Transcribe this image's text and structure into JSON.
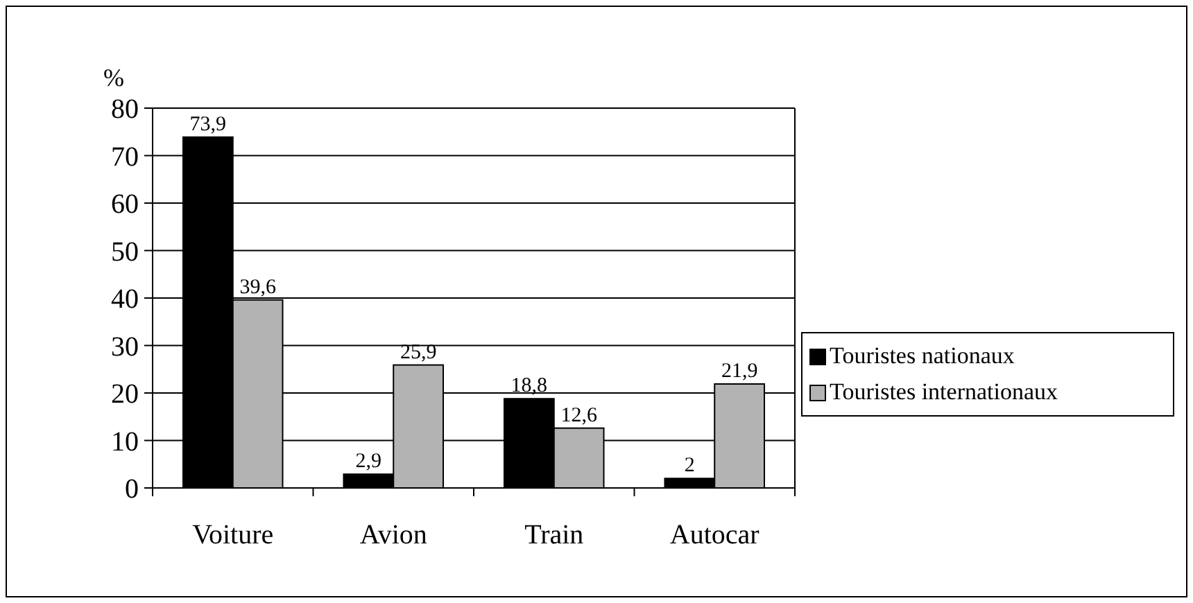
{
  "chart_data": {
    "type": "bar",
    "ylabel": "%",
    "categories": [
      "Voiture",
      "Avion",
      "Train",
      "Autocar"
    ],
    "series": [
      {
        "name": "Touristes nationaux",
        "color": "#000000",
        "values": [
          73.9,
          2.9,
          18.8,
          2
        ],
        "value_labels": [
          "73,9",
          "2,9",
          "18,8",
          "2"
        ]
      },
      {
        "name": "Touristes internationaux",
        "color": "#b3b3b3",
        "values": [
          39.6,
          25.9,
          12.6,
          21.9
        ],
        "value_labels": [
          "39,6",
          "25,9",
          "12,6",
          "21,9"
        ]
      }
    ],
    "ylim": [
      0,
      80
    ],
    "yticks": [
      0,
      10,
      20,
      30,
      40,
      50,
      60,
      70,
      80
    ],
    "grid": "y",
    "legend": "right"
  }
}
